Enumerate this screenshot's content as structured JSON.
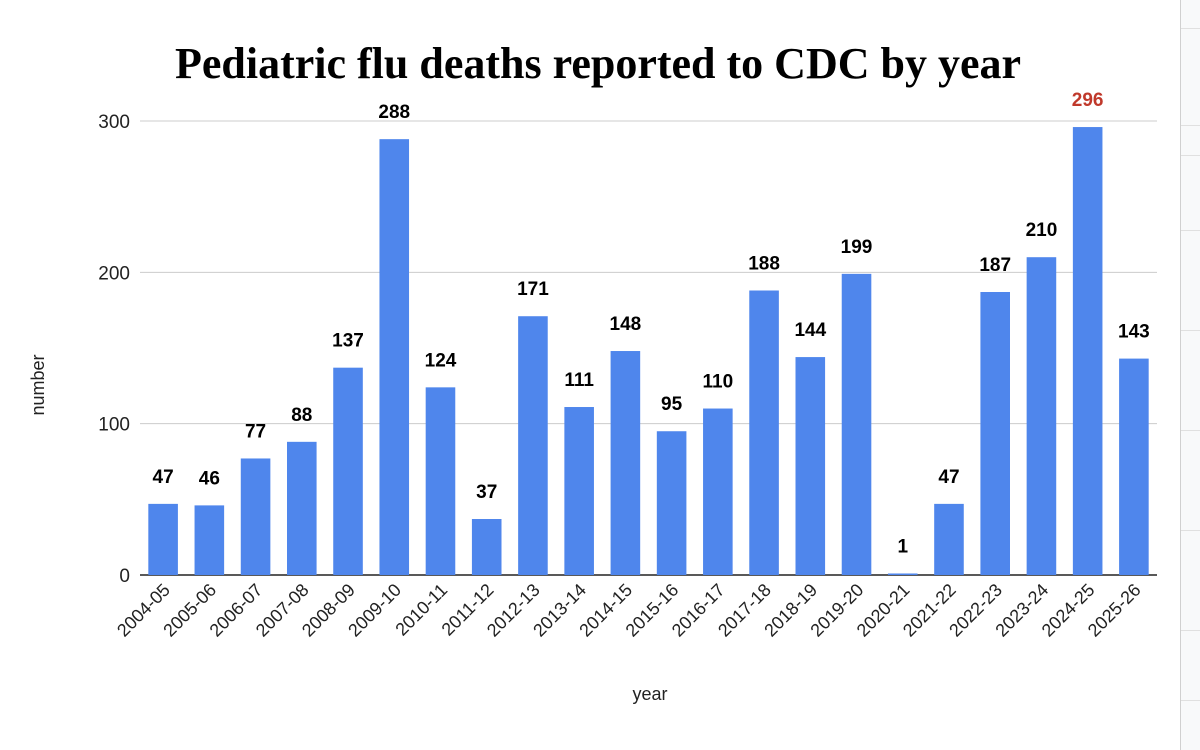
{
  "chart_data": {
    "type": "bar",
    "title": "Pediatric flu deaths reported to CDC by year",
    "xlabel": "year",
    "ylabel": "number",
    "ylim": [
      0,
      300
    ],
    "yticks": [
      "0",
      "100",
      "200",
      "300"
    ],
    "grid": true,
    "categories": [
      "2004-05",
      "2005-06",
      "2006-07",
      "2007-08",
      "2008-09",
      "2009-10",
      "2010-11",
      "2011-12",
      "2012-13",
      "2013-14",
      "2014-15",
      "2015-16",
      "2016-17",
      "2017-18",
      "2018-19",
      "2019-20",
      "2020-21",
      "2021-22",
      "2022-23",
      "2023-24",
      "2024-25",
      "2025-26"
    ],
    "values": [
      47,
      46,
      77,
      88,
      137,
      288,
      124,
      37,
      171,
      111,
      148,
      95,
      110,
      188,
      144,
      199,
      1,
      47,
      187,
      210,
      296,
      143
    ],
    "data_labels": [
      "47",
      "46",
      "77",
      "88",
      "137",
      "288",
      "124",
      "37",
      "171",
      "111",
      "148",
      "95",
      "110",
      "188",
      "144",
      "199",
      "1",
      "47",
      "187",
      "210",
      "296",
      "143"
    ],
    "highlight_index": 20,
    "colors": {
      "bar": "#4f86ec",
      "label": "#000000",
      "highlight_label": "#c0392b",
      "grid": "#cccccc",
      "axis": "#222222"
    }
  }
}
